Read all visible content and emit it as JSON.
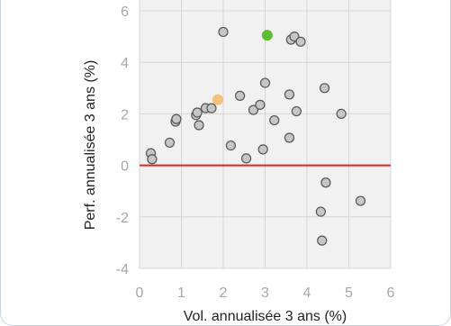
{
  "chart_data": {
    "type": "scatter",
    "xlabel": "Vol. annualisée 3 ans (%)",
    "ylabel": "Perf. annualisée 3 ans (%)",
    "xlim": [
      0,
      6
    ],
    "ylim": [
      -4,
      6
    ],
    "xticks": [
      0,
      1,
      2,
      3,
      4,
      5,
      6
    ],
    "yticks": [
      -4,
      -2,
      0,
      2,
      4,
      6
    ],
    "grid": true,
    "reference_line": {
      "y": 0,
      "color": "#e8221f"
    },
    "colors": {
      "default": "#c6c6c6",
      "highlight_green": "#5cbd2e",
      "highlight_orange": "#f5c07a",
      "marker_edge": "#555555",
      "plot_bg": "#f1f1f1",
      "grid": "#d6d6d6"
    },
    "series": [
      {
        "style": "default",
        "points": [
          [
            0.27,
            0.47
          ],
          [
            0.3,
            0.24
          ],
          [
            0.72,
            0.88
          ],
          [
            0.86,
            1.7
          ],
          [
            0.88,
            1.8
          ],
          [
            1.35,
            1.95
          ],
          [
            1.38,
            2.05
          ],
          [
            1.42,
            1.56
          ],
          [
            1.58,
            2.22
          ],
          [
            1.72,
            2.22
          ],
          [
            2.0,
            5.18
          ],
          [
            2.18,
            0.77
          ],
          [
            2.4,
            2.7
          ],
          [
            2.55,
            0.27
          ],
          [
            2.72,
            2.15
          ],
          [
            2.88,
            2.35
          ],
          [
            2.95,
            0.62
          ],
          [
            3.0,
            3.2
          ],
          [
            3.22,
            1.75
          ],
          [
            3.58,
            1.07
          ],
          [
            3.58,
            2.75
          ],
          [
            3.62,
            4.88
          ],
          [
            3.7,
            5.0
          ],
          [
            3.75,
            2.1
          ],
          [
            3.85,
            4.8
          ],
          [
            4.33,
            -1.8
          ],
          [
            4.36,
            -2.92
          ],
          [
            4.42,
            3.0
          ],
          [
            4.45,
            -0.67
          ],
          [
            4.82,
            2.0
          ],
          [
            5.28,
            -1.38
          ]
        ]
      },
      {
        "style": "highlight_green",
        "points": [
          [
            3.05,
            5.05
          ]
        ]
      },
      {
        "style": "highlight_orange",
        "points": [
          [
            1.87,
            2.55
          ]
        ]
      }
    ]
  }
}
